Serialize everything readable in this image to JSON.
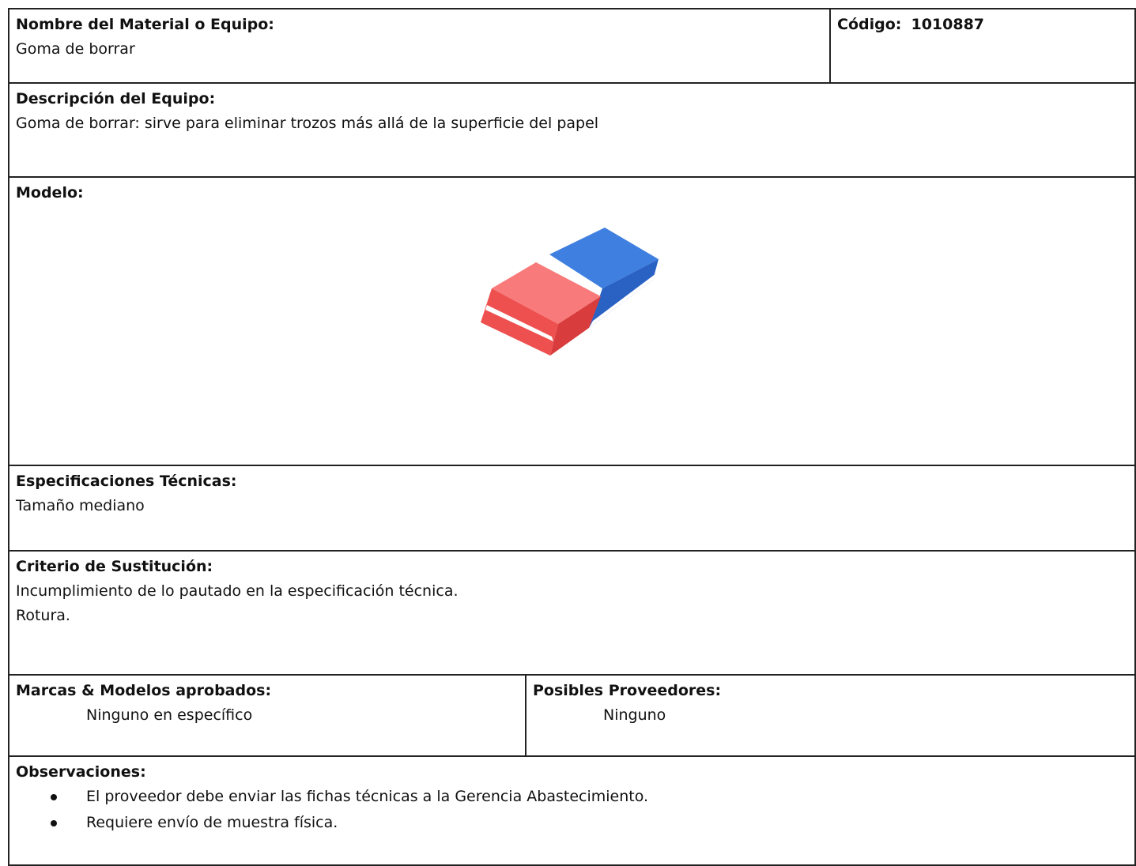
{
  "header": {
    "material_label": "Nombre del Material o Equipo:",
    "material_value": "Goma de borrar",
    "code_label": "Código:",
    "code_value": "1010887"
  },
  "description": {
    "label": "Descripción del Equipo:",
    "value": "Goma de borrar: sirve para eliminar trozos más allá de la superficie del papel"
  },
  "model": {
    "label": "Modelo:"
  },
  "specs": {
    "label": "Especificaciones Técnicas:",
    "value": "Tamaño mediano"
  },
  "criteria": {
    "label": "Criterio de Sustitución:",
    "lines": [
      "Incumplimiento de lo pautado en la especificación técnica.",
      "Rotura."
    ]
  },
  "brands": {
    "label": "Marcas & Modelos aprobados:",
    "value": "Ninguno en específico"
  },
  "suppliers": {
    "label": "Posibles Proveedores:",
    "value": "Ninguno"
  },
  "observations": {
    "label": "Observaciones:",
    "items": [
      "El proveedor debe enviar las fichas técnicas a la Gerencia Abastecimiento.",
      "Requiere envío de muestra física."
    ]
  }
}
